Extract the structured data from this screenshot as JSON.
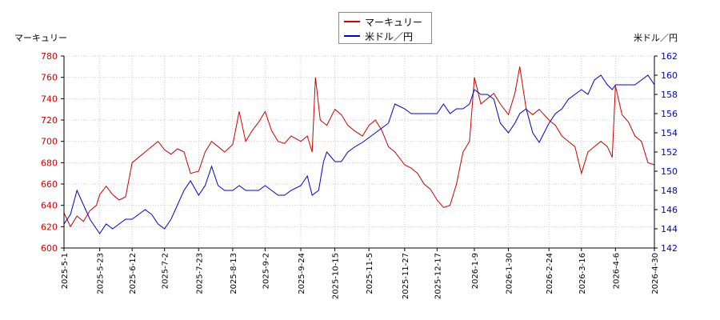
{
  "colors": {
    "left_series": "#cc0000",
    "right_series": "#0000cc",
    "axis_left_text": "#cc0000",
    "axis_right_text": "#0000cc",
    "grid": "#cccccc"
  },
  "chart_data": {
    "type": "line",
    "legend": {
      "placement": "top-center",
      "entries": [
        "マーキュリー",
        "米ドル／円"
      ]
    },
    "left_axis_title": "マーキュリー",
    "right_axis_title": "米ドル／円",
    "y_left": {
      "min": 600,
      "max": 780,
      "ticks": [
        600,
        620,
        640,
        660,
        680,
        700,
        720,
        740,
        760,
        780
      ]
    },
    "y_right": {
      "min": 142,
      "max": 162,
      "ticks": [
        142,
        144,
        146,
        148,
        150,
        152,
        154,
        156,
        158,
        160,
        162
      ]
    },
    "x_tick_labels": [
      "2025-5-1",
      "2025-5-23",
      "2025-6-12",
      "2025-7-2",
      "2025-7-23",
      "2025-8-13",
      "2025-9-2",
      "2025-9-24",
      "2025-10-15",
      "2025-11-5",
      "2025-11-27",
      "2025-12-17",
      "2026-1-9",
      "2026-1-30",
      "2026-2-24",
      "2026-3-16",
      "2026-4-6",
      "2026-4-30"
    ],
    "grid": true,
    "series": [
      {
        "name": "マーキュリー",
        "axis": "left",
        "points": [
          [
            "2025-5-1",
            633
          ],
          [
            "2025-5-5",
            620
          ],
          [
            "2025-5-9",
            630
          ],
          [
            "2025-5-13",
            625
          ],
          [
            "2025-5-17",
            635
          ],
          [
            "2025-5-21",
            640
          ],
          [
            "2025-5-23",
            650
          ],
          [
            "2025-5-27",
            658
          ],
          [
            "2025-5-31",
            650
          ],
          [
            "2025-6-4",
            645
          ],
          [
            "2025-6-8",
            648
          ],
          [
            "2025-6-12",
            680
          ],
          [
            "2025-6-16",
            685
          ],
          [
            "2025-6-20",
            690
          ],
          [
            "2025-6-24",
            695
          ],
          [
            "2025-6-28",
            700
          ],
          [
            "2025-7-2",
            692
          ],
          [
            "2025-7-6",
            688
          ],
          [
            "2025-7-10",
            693
          ],
          [
            "2025-7-14",
            690
          ],
          [
            "2025-7-18",
            670
          ],
          [
            "2025-7-23",
            672
          ],
          [
            "2025-7-27",
            690
          ],
          [
            "2025-7-31",
            700
          ],
          [
            "2025-8-4",
            695
          ],
          [
            "2025-8-8",
            690
          ],
          [
            "2025-8-13",
            697
          ],
          [
            "2025-8-17",
            728
          ],
          [
            "2025-8-21",
            700
          ],
          [
            "2025-8-25",
            710
          ],
          [
            "2025-8-29",
            718
          ],
          [
            "2025-9-2",
            728
          ],
          [
            "2025-9-6",
            710
          ],
          [
            "2025-9-10",
            700
          ],
          [
            "2025-9-14",
            698
          ],
          [
            "2025-9-18",
            705
          ],
          [
            "2025-9-24",
            700
          ],
          [
            "2025-9-28",
            705
          ],
          [
            "2025-10-1",
            690
          ],
          [
            "2025-10-3",
            760
          ],
          [
            "2025-10-6",
            720
          ],
          [
            "2025-10-10",
            715
          ],
          [
            "2025-10-15",
            730
          ],
          [
            "2025-10-19",
            725
          ],
          [
            "2025-10-23",
            715
          ],
          [
            "2025-10-27",
            710
          ],
          [
            "2025-11-1",
            705
          ],
          [
            "2025-11-5",
            715
          ],
          [
            "2025-11-9",
            720
          ],
          [
            "2025-11-13",
            710
          ],
          [
            "2025-11-17",
            695
          ],
          [
            "2025-11-21",
            690
          ],
          [
            "2025-11-27",
            678
          ],
          [
            "2025-12-1",
            675
          ],
          [
            "2025-12-5",
            670
          ],
          [
            "2025-12-9",
            660
          ],
          [
            "2025-12-13",
            655
          ],
          [
            "2025-12-17",
            645
          ],
          [
            "2025-12-21",
            638
          ],
          [
            "2025-12-25",
            640
          ],
          [
            "2025-12-29",
            660
          ],
          [
            "2026-1-2",
            690
          ],
          [
            "2026-1-6",
            700
          ],
          [
            "2026-1-9",
            760
          ],
          [
            "2026-1-13",
            735
          ],
          [
            "2026-1-17",
            740
          ],
          [
            "2026-1-21",
            745
          ],
          [
            "2026-1-25",
            735
          ],
          [
            "2026-1-30",
            725
          ],
          [
            "2026-2-3",
            745
          ],
          [
            "2026-2-6",
            770
          ],
          [
            "2026-2-10",
            730
          ],
          [
            "2026-2-14",
            725
          ],
          [
            "2026-2-18",
            730
          ],
          [
            "2026-2-24",
            720
          ],
          [
            "2026-2-28",
            715
          ],
          [
            "2026-3-4",
            705
          ],
          [
            "2026-3-8",
            700
          ],
          [
            "2026-3-12",
            695
          ],
          [
            "2026-3-16",
            670
          ],
          [
            "2026-3-20",
            690
          ],
          [
            "2026-3-24",
            695
          ],
          [
            "2026-3-28",
            700
          ],
          [
            "2026-4-1",
            695
          ],
          [
            "2026-4-4",
            685
          ],
          [
            "2026-4-6",
            752
          ],
          [
            "2026-4-10",
            725
          ],
          [
            "2026-4-14",
            718
          ],
          [
            "2026-4-18",
            705
          ],
          [
            "2026-4-22",
            700
          ],
          [
            "2026-4-26",
            680
          ],
          [
            "2026-4-30",
            678
          ]
        ]
      },
      {
        "name": "米ドル／円",
        "axis": "right",
        "points": [
          [
            "2025-5-1",
            144.5
          ],
          [
            "2025-5-5",
            145.5
          ],
          [
            "2025-5-9",
            148
          ],
          [
            "2025-5-13",
            146.5
          ],
          [
            "2025-5-17",
            145
          ],
          [
            "2025-5-21",
            144
          ],
          [
            "2025-5-23",
            143.5
          ],
          [
            "2025-5-27",
            144.5
          ],
          [
            "2025-5-31",
            144
          ],
          [
            "2025-6-4",
            144.5
          ],
          [
            "2025-6-8",
            145
          ],
          [
            "2025-6-12",
            145
          ],
          [
            "2025-6-16",
            145.5
          ],
          [
            "2025-6-20",
            146
          ],
          [
            "2025-6-24",
            145.5
          ],
          [
            "2025-6-28",
            144.5
          ],
          [
            "2025-7-2",
            144
          ],
          [
            "2025-7-6",
            145
          ],
          [
            "2025-7-10",
            146.5
          ],
          [
            "2025-7-14",
            148
          ],
          [
            "2025-7-18",
            149
          ],
          [
            "2025-7-23",
            147.5
          ],
          [
            "2025-7-27",
            148.5
          ],
          [
            "2025-7-31",
            150.5
          ],
          [
            "2025-8-4",
            148.5
          ],
          [
            "2025-8-8",
            148
          ],
          [
            "2025-8-13",
            148
          ],
          [
            "2025-8-17",
            148.5
          ],
          [
            "2025-8-21",
            148
          ],
          [
            "2025-8-25",
            148
          ],
          [
            "2025-8-29",
            148
          ],
          [
            "2025-9-2",
            148.5
          ],
          [
            "2025-9-6",
            148
          ],
          [
            "2025-9-10",
            147.5
          ],
          [
            "2025-9-14",
            147.5
          ],
          [
            "2025-9-18",
            148
          ],
          [
            "2025-9-24",
            148.5
          ],
          [
            "2025-9-28",
            149.5
          ],
          [
            "2025-10-1",
            147.5
          ],
          [
            "2025-10-5",
            148
          ],
          [
            "2025-10-8",
            151
          ],
          [
            "2025-10-10",
            152
          ],
          [
            "2025-10-15",
            151
          ],
          [
            "2025-10-19",
            151
          ],
          [
            "2025-10-23",
            152
          ],
          [
            "2025-10-27",
            152.5
          ],
          [
            "2025-11-1",
            153
          ],
          [
            "2025-11-5",
            153.5
          ],
          [
            "2025-11-9",
            154
          ],
          [
            "2025-11-13",
            154.5
          ],
          [
            "2025-11-17",
            155
          ],
          [
            "2025-11-21",
            157
          ],
          [
            "2025-11-27",
            156.5
          ],
          [
            "2025-12-1",
            156
          ],
          [
            "2025-12-5",
            156
          ],
          [
            "2025-12-9",
            156
          ],
          [
            "2025-12-13",
            156
          ],
          [
            "2025-12-17",
            156
          ],
          [
            "2025-12-21",
            157
          ],
          [
            "2025-12-25",
            156
          ],
          [
            "2025-12-29",
            156.5
          ],
          [
            "2026-1-2",
            156.5
          ],
          [
            "2026-1-6",
            157
          ],
          [
            "2026-1-9",
            158.5
          ],
          [
            "2026-1-13",
            158
          ],
          [
            "2026-1-17",
            158
          ],
          [
            "2026-1-21",
            157.5
          ],
          [
            "2026-1-25",
            155
          ],
          [
            "2026-1-30",
            154
          ],
          [
            "2026-2-3",
            155
          ],
          [
            "2026-2-6",
            156
          ],
          [
            "2026-2-10",
            156.5
          ],
          [
            "2026-2-14",
            154
          ],
          [
            "2026-2-18",
            153
          ],
          [
            "2026-2-24",
            155
          ],
          [
            "2026-2-28",
            156
          ],
          [
            "2026-3-4",
            156.5
          ],
          [
            "2026-3-8",
            157.5
          ],
          [
            "2026-3-12",
            158
          ],
          [
            "2026-3-16",
            158.5
          ],
          [
            "2026-3-20",
            158
          ],
          [
            "2026-3-24",
            159.5
          ],
          [
            "2026-3-28",
            160
          ],
          [
            "2026-4-1",
            159
          ],
          [
            "2026-4-4",
            158.5
          ],
          [
            "2026-4-6",
            159
          ],
          [
            "2026-4-10",
            159
          ],
          [
            "2026-4-14",
            159
          ],
          [
            "2026-4-18",
            159
          ],
          [
            "2026-4-22",
            159.5
          ],
          [
            "2026-4-26",
            160
          ],
          [
            "2026-4-30",
            159
          ]
        ]
      }
    ]
  }
}
